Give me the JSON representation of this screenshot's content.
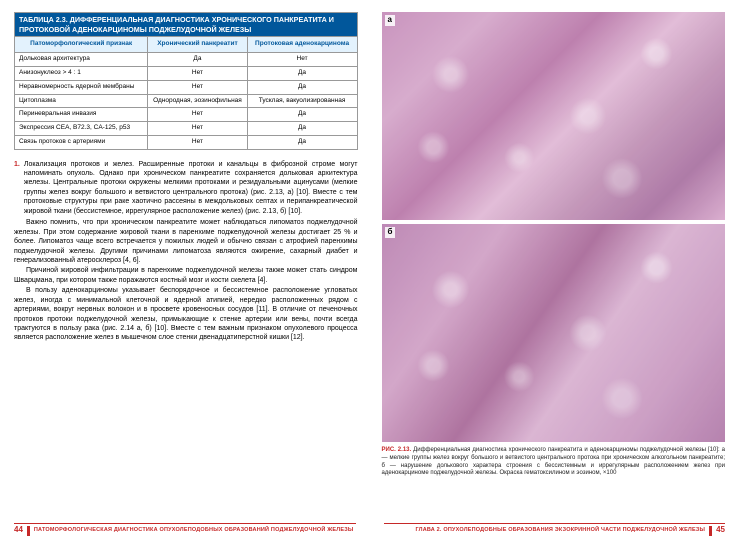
{
  "table": {
    "title": "ТАБЛИЦА 2.3. ДИФФЕРЕНЦИАЛЬНАЯ ДИАГНОСТИКА ХРОНИЧЕСКОГО ПАНКРЕАТИТА И ПРОТОКОВОЙ АДЕНОКАРЦИНОМЫ ПОДЖЕЛУДОЧНОЙ ЖЕЛЕЗЫ",
    "headers": [
      "Патоморфологический признак",
      "Хронический панкреатит",
      "Протоковая аденокарцинома"
    ],
    "rows": [
      [
        "Дольковая архитектура",
        "Да",
        "Нет"
      ],
      [
        "Анизонуклеоз > 4 : 1",
        "Нет",
        "Да"
      ],
      [
        "Неравномерность ядерной мембраны",
        "Нет",
        "Да"
      ],
      [
        "Цитоплазма",
        "Однородная, эозинофильная",
        "Тусклая, вакуолизированная"
      ],
      [
        "Периневральная инвазия",
        "Нет",
        "Да"
      ],
      [
        "Экспрессия CEA, B72.3, CA-125, p53",
        "Нет",
        "Да"
      ],
      [
        "Связь протоков с артериями",
        "Нет",
        "Да"
      ]
    ]
  },
  "list": {
    "num": "1.",
    "text": "Локализация протоков и желез. Расширенные протоки и канальцы в фиброзной строме могут напоминать опухоль. Однако при хроническом панкреатите сохраняется дольковая архитектура железы. Центральные протоки окружены мелкими протоками и резидуальными ацинусами (мелкие группы желез вокруг большого и ветвистого центрального протока) (рис. 2.13, а) [10]. Вместе с тем протоковые структуры при раке хаотично рассеяны в междольковых септах и перипанкреатической жировой ткани (бессистемное, иррегулярное расположение желез) (рис. 2.13, б) [10]."
  },
  "paras": [
    "Важно помнить, что при хроническом панкреатите может наблюдаться липоматоз поджелудочной железы. При этом содержание жировой ткани в паренхиме поджелудочной железы достигает 25 % и более. Липоматоз чаще всего встречается у пожилых людей и обычно связан с атрофией паренхимы поджелудочной железы. Другими причинами липоматоза являются ожирение, сахарный диабет и генерализованный атеросклероз [4, 6].",
    "Причиной жировой инфильтрации в паренхиме поджелудочной железы также может стать синдром Шварцмана, при котором также поражаются костный мозг и кости скелета [4].",
    "В пользу аденокарциномы указывает беспорядочное и бессистемное расположение угловатых желез, иногда с минимальной клеточной и ядерной атипией, нередко расположенных рядом с артериями, вокруг нервных волокон и в просвете кровеносных сосудов [11]. В отличие от печеночных протоков протоки поджелудочной железы, примыкающие к стенке артерии или вены, почти всегда трактуются в пользу рака (рис. 2.14 а, б) [10]. Вместе с тем важным признаком опухолевого процесса является расположение желез в мышечном слое стенки двенадцатиперстной кишки [12]."
  ],
  "figure": {
    "labelA": "а",
    "labelB": "б",
    "captionLead": "РИС. 2.13.",
    "caption": " Дифференциальная диагностика хронического панкреатита и аденокарциномы поджелудочной железы [10]: а — мелкие группы желез вокруг большого и ветвистого центрального протока при хроническом алкогольном панкреатите; б — нарушение долькового характера строения с бессистемным и иррегулярным расположением желез при аденокарциноме поджелудочной железы. Окраска гематоксилином и эозином, ×100"
  },
  "footer": {
    "leftNum": "44",
    "leftText": "ПАТОМОРФОЛОГИЧЕСКАЯ ДИАГНОСТИКА ОПУХОЛЕПОДОБНЫХ ОБРАЗОВАНИЙ ПОДЖЕЛУДОЧНОЙ ЖЕЛЕЗЫ",
    "rightText": "ГЛАВА 2. ОПУХОЛЕПОДОБНЫЕ ОБРАЗОВАНИЯ ЭКЗОКРИННОЙ ЧАСТИ ПОДЖЕЛУДОЧНОЙ ЖЕЛЕЗЫ",
    "rightNum": "45"
  }
}
